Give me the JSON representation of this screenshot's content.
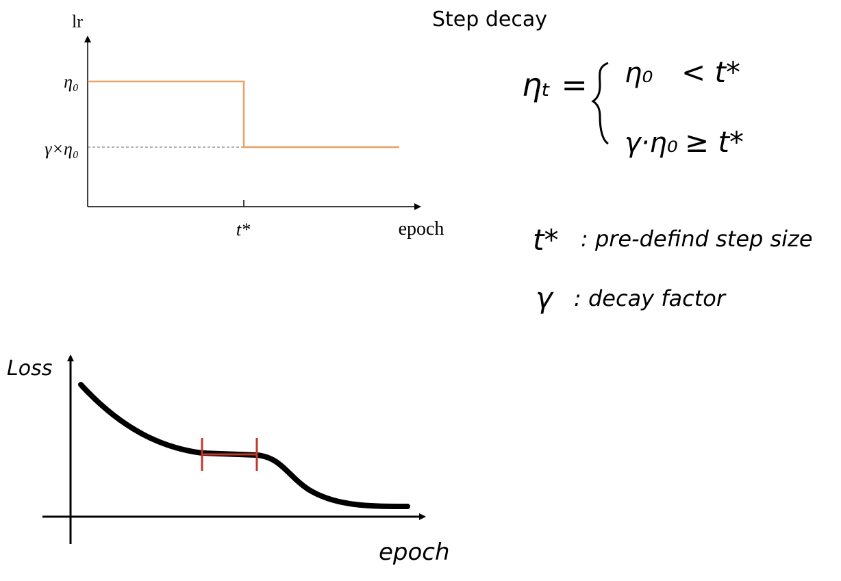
{
  "title": "Step decay",
  "lr_plot": {
    "y_label": "lr",
    "x_label": "epoch",
    "y_ticks": [
      "η₀",
      "γ×η₀"
    ],
    "x_ticks": [
      "t*"
    ]
  },
  "formula": {
    "lhs": "ηₜ =",
    "cases": [
      {
        "value": "η₀",
        "condition": "< t*"
      },
      {
        "value": "γ·η₀",
        "condition": "≥ t*"
      }
    ]
  },
  "definitions": [
    {
      "symbol": "t*",
      "text": ": pre-defind step size"
    },
    {
      "symbol": "γ",
      "text": ": decay factor"
    }
  ],
  "loss_plot": {
    "y_label": "Loss",
    "x_label": "epoch"
  }
}
